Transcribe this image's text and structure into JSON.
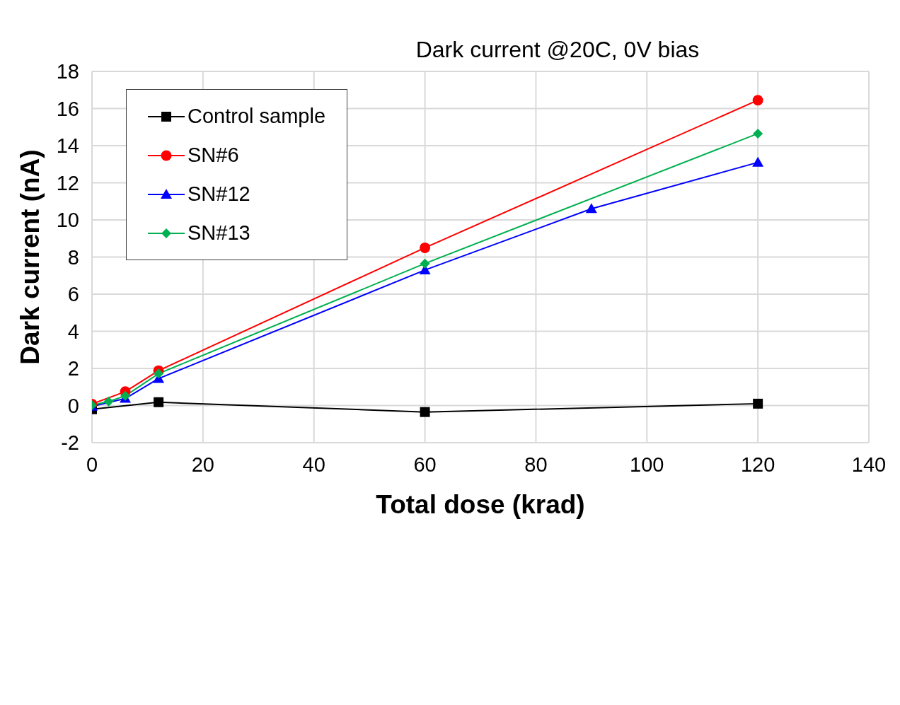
{
  "chart_data": {
    "type": "line",
    "title": "Dark current @20C, 0V bias",
    "xlabel": "Total dose (krad)",
    "ylabel": "Dark current (nA)",
    "xlim": [
      0,
      140
    ],
    "xticks": [
      0,
      20,
      40,
      60,
      80,
      100,
      120,
      140
    ],
    "ylim": [
      -2,
      18
    ],
    "yticks": [
      -2,
      0,
      2,
      4,
      6,
      8,
      10,
      12,
      14,
      16,
      18
    ],
    "grid": true,
    "legend": "top left",
    "series": [
      {
        "name": "Control sample",
        "color": "#000000",
        "marker": "square",
        "x": [
          0,
          12,
          60,
          120
        ],
        "values": [
          -0.2,
          0.18,
          -0.35,
          0.1
        ]
      },
      {
        "name": "SN#6",
        "color": "#ff0000",
        "marker": "circle",
        "x": [
          0,
          6,
          12,
          60,
          120
        ],
        "values": [
          0.08,
          0.75,
          1.88,
          8.5,
          16.45
        ]
      },
      {
        "name": "SN#12",
        "color": "#0000ff",
        "marker": "triangle",
        "x": [
          0,
          6,
          12,
          60,
          90,
          120
        ],
        "values": [
          -0.05,
          0.38,
          1.45,
          7.3,
          10.6,
          13.1
        ]
      },
      {
        "name": "SN#13",
        "color": "#00b050",
        "marker": "diamond",
        "x": [
          0,
          3,
          6,
          12,
          60,
          120
        ],
        "values": [
          0.02,
          0.22,
          0.52,
          1.72,
          7.65,
          14.65
        ]
      }
    ]
  }
}
